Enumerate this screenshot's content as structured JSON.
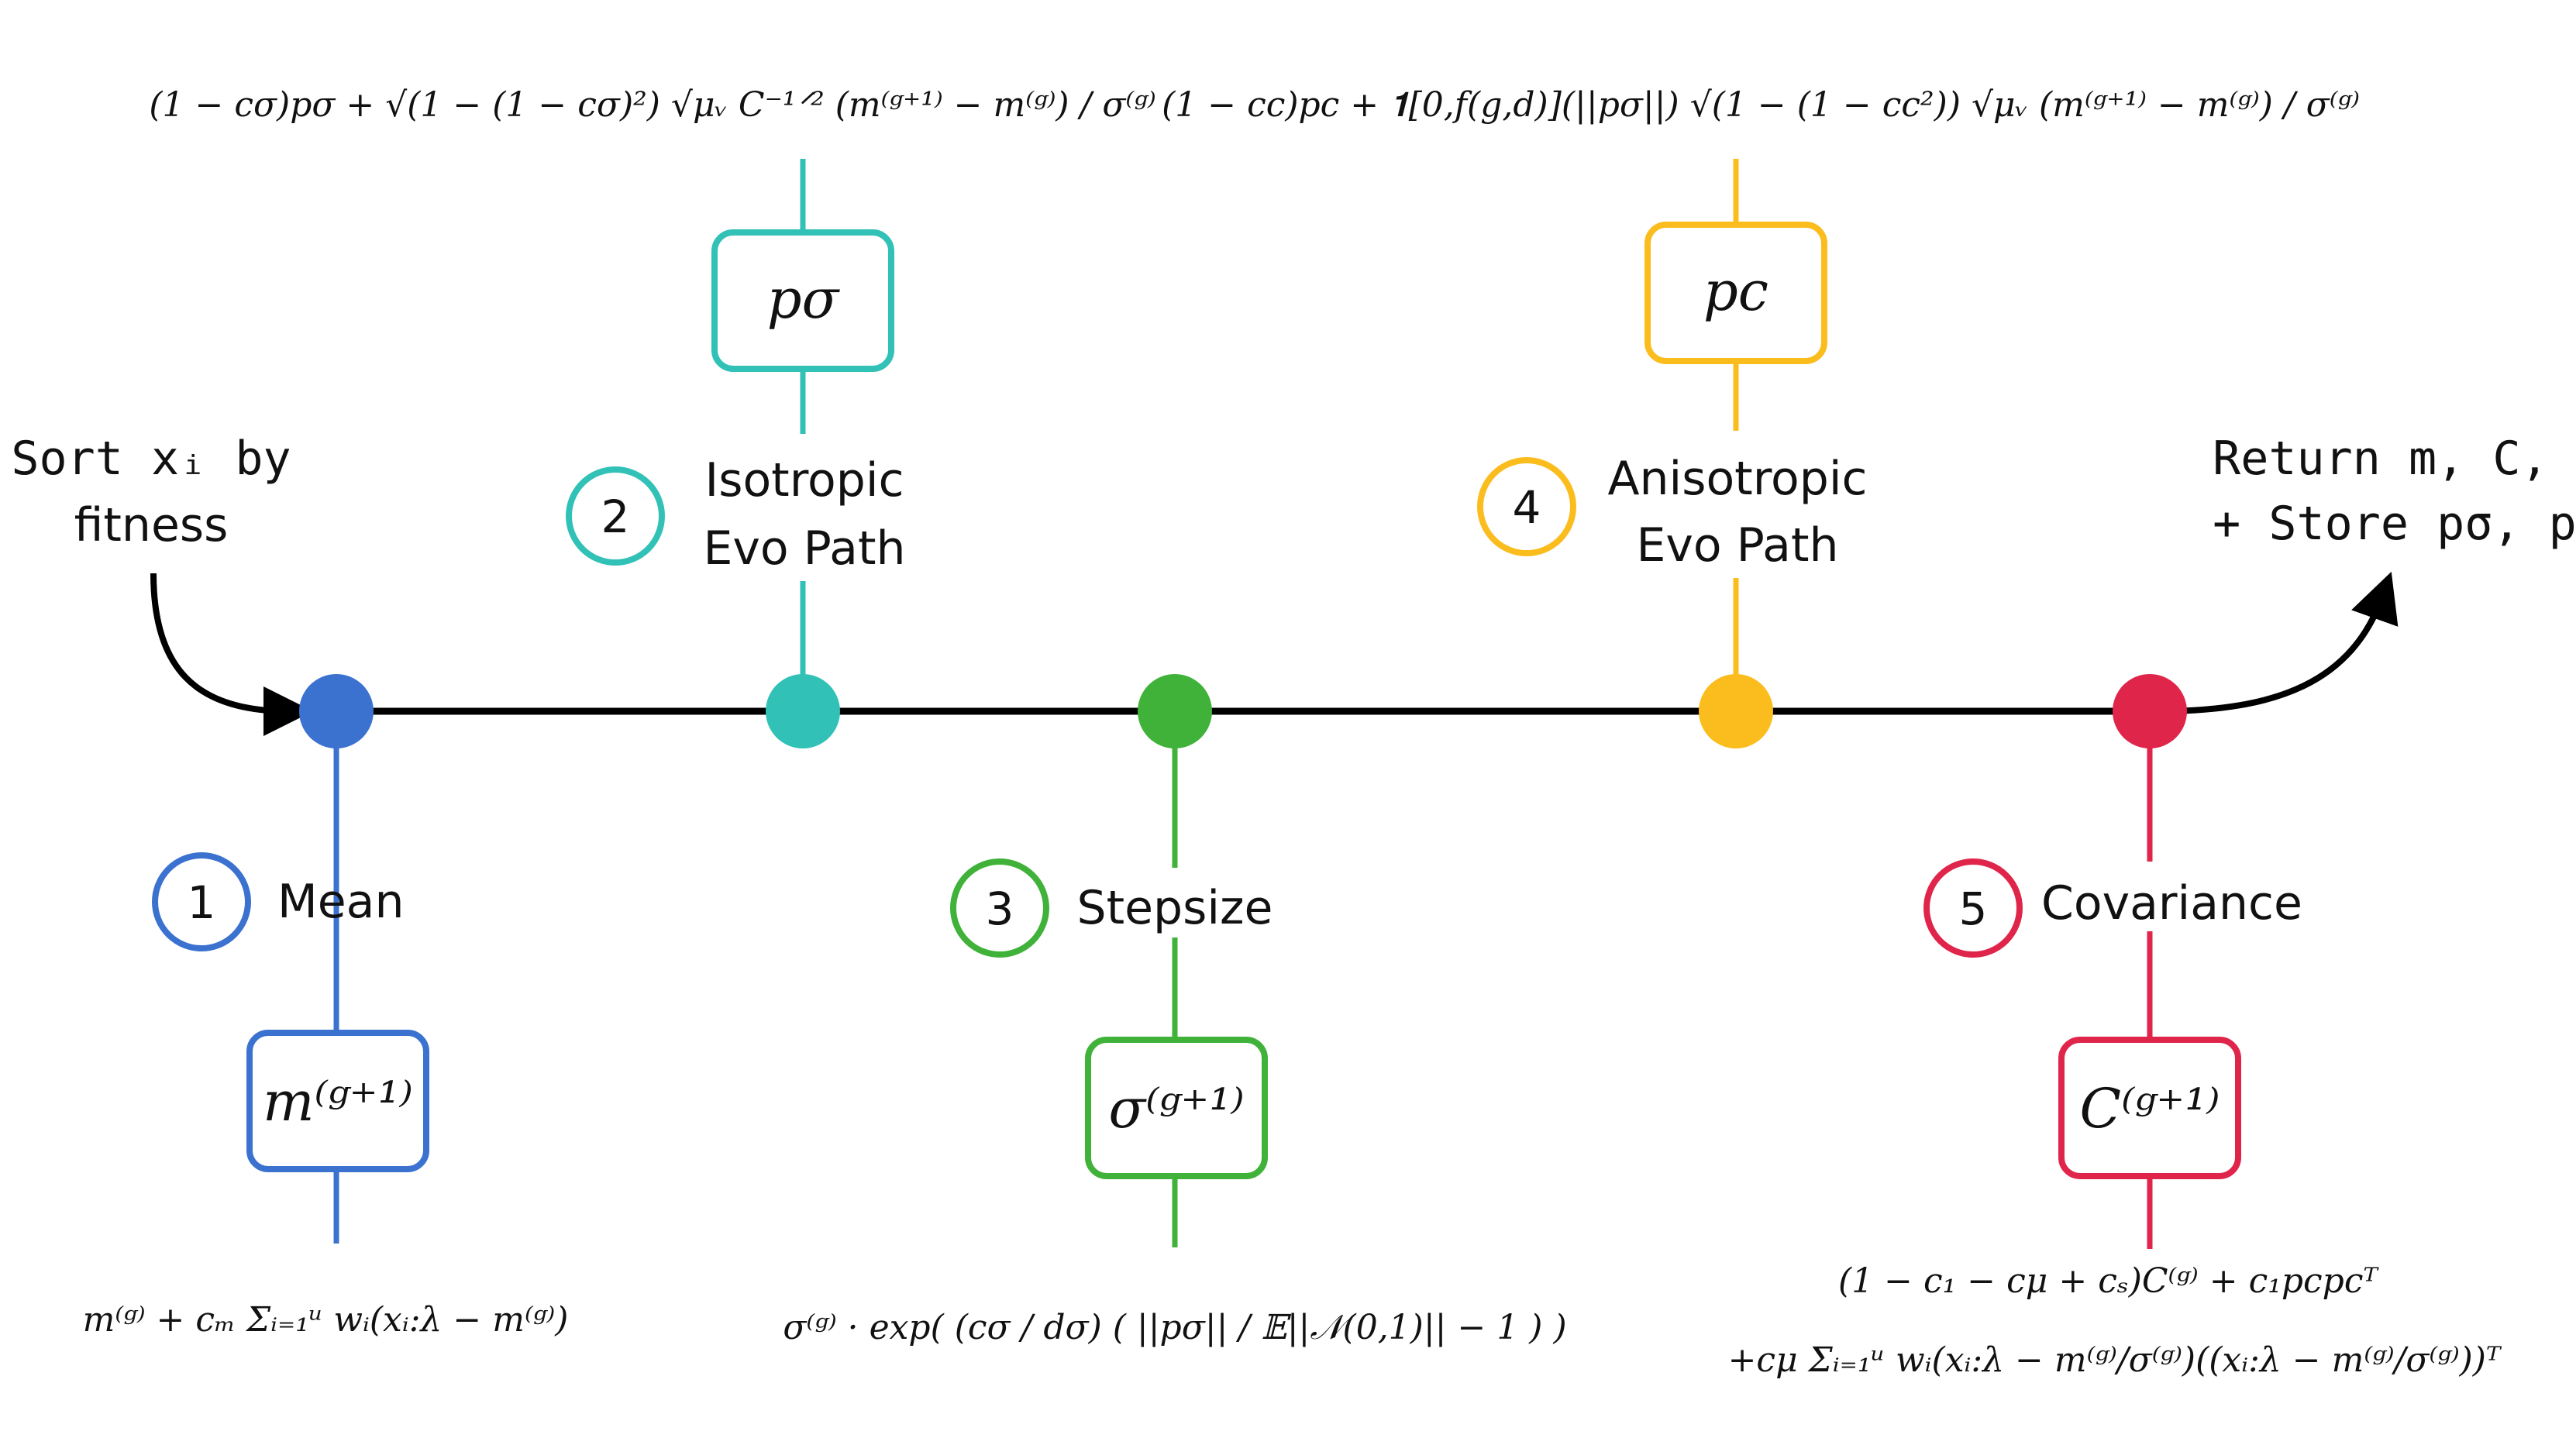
{
  "start": {
    "line1": "Sort xᵢ by",
    "line2": "fitness"
  },
  "end": {
    "line1": "Return m, C, σ",
    "line2": "+ Store pσ, pc"
  },
  "colors": {
    "axis": "#000000",
    "mean": "#3b72d0",
    "isotropic": "#31c1b6",
    "stepsize": "#40b23a",
    "anisotropic": "#fbbd1e",
    "covariance": "#e0254a"
  },
  "steps": [
    {
      "number": "1",
      "name": "Mean",
      "symbol": "m⁽ᵍ⁺¹⁾",
      "formula": "m⁽ᵍ⁾ + cₘ Σᵢ₌₁ᵘ wᵢ(xᵢ:λ − m⁽ᵍ⁾)",
      "formula_line2": ""
    },
    {
      "number": "2",
      "name_line1": "Isotropic",
      "name_line2": "Evo Path",
      "symbol": "pσ",
      "formula": "(1 − cσ)pσ + √(1 − (1 − cσ)²) √μᵥ C⁻¹ᐟ² (m⁽ᵍ⁺¹⁾ − m⁽ᵍ⁾) / σ⁽ᵍ⁾"
    },
    {
      "number": "3",
      "name": "Stepsize",
      "symbol": "σ⁽ᵍ⁺¹⁾",
      "formula": "σ⁽ᵍ⁾ · exp( (cσ / dσ) ( ||pσ|| / 𝔼||𝒩(0,1)|| − 1 ) )"
    },
    {
      "number": "4",
      "name_line1": "Anisotropic",
      "name_line2": "Evo Path",
      "symbol": "pc",
      "formula": "(1 − cc)pc + 𝟏[0,f(g,d)](||pσ||) √(1 − (1 − cc²)) √μᵥ (m⁽ᵍ⁺¹⁾ − m⁽ᵍ⁾) / σ⁽ᵍ⁾"
    },
    {
      "number": "5",
      "name": "Covariance",
      "symbol": "C⁽ᵍ⁺¹⁾",
      "formula": "(1 − c₁ − cμ + cₛ)C⁽ᵍ⁾ + c₁pcpcᵀ",
      "formula_line2": "+cμ Σᵢ₌₁ᵘ wᵢ(xᵢ:λ − m⁽ᵍ⁾/σ⁽ᵍ⁾)((xᵢ:λ − m⁽ᵍ⁾/σ⁽ᵍ⁾))ᵀ"
    }
  ]
}
